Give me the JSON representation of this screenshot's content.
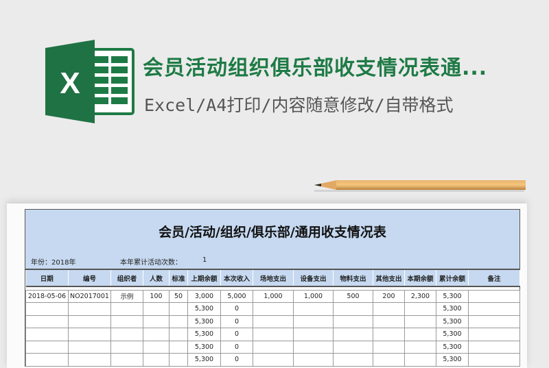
{
  "header": {
    "title": "会员活动组织俱乐部收支情况表通...",
    "subtitle": "Excel/A4打印/内容随意修改/自带格式",
    "logo_letter": "X"
  },
  "colors": {
    "brand_green": "#1e7a45",
    "header_blue": "#c6d9f0"
  },
  "sheet": {
    "title": "会员/活动/组织/俱乐部/通用收支情况表",
    "year_label": "年份：2018年",
    "count_label": "本年累计活动次数：",
    "count_value": "1",
    "columns": [
      "日期",
      "编号",
      "组织者",
      "人数",
      "标准",
      "上期余额",
      "本次收入",
      "场地支出",
      "设备支出",
      "物料支出",
      "其他支出",
      "本期余额",
      "累计余额",
      "备注"
    ],
    "rows": [
      [
        "2018-05-06",
        "NO2017001",
        "示例",
        "100",
        "50",
        "3,000",
        "5,000",
        "1,000",
        "1,000",
        "500",
        "200",
        "2,300",
        "5,300",
        ""
      ],
      [
        "",
        "",
        "",
        "",
        "",
        "5,300",
        "0",
        "",
        "",
        "",
        "",
        "",
        "5,300",
        ""
      ],
      [
        "",
        "",
        "",
        "",
        "",
        "5,300",
        "0",
        "",
        "",
        "",
        "",
        "",
        "5,300",
        ""
      ],
      [
        "",
        "",
        "",
        "",
        "",
        "5,300",
        "0",
        "",
        "",
        "",
        "",
        "",
        "5,300",
        ""
      ],
      [
        "",
        "",
        "",
        "",
        "",
        "5,300",
        "0",
        "",
        "",
        "",
        "",
        "",
        "5,300",
        ""
      ],
      [
        "",
        "",
        "",
        "",
        "",
        "5,300",
        "0",
        "",
        "",
        "",
        "",
        "",
        "5,300",
        ""
      ]
    ]
  }
}
